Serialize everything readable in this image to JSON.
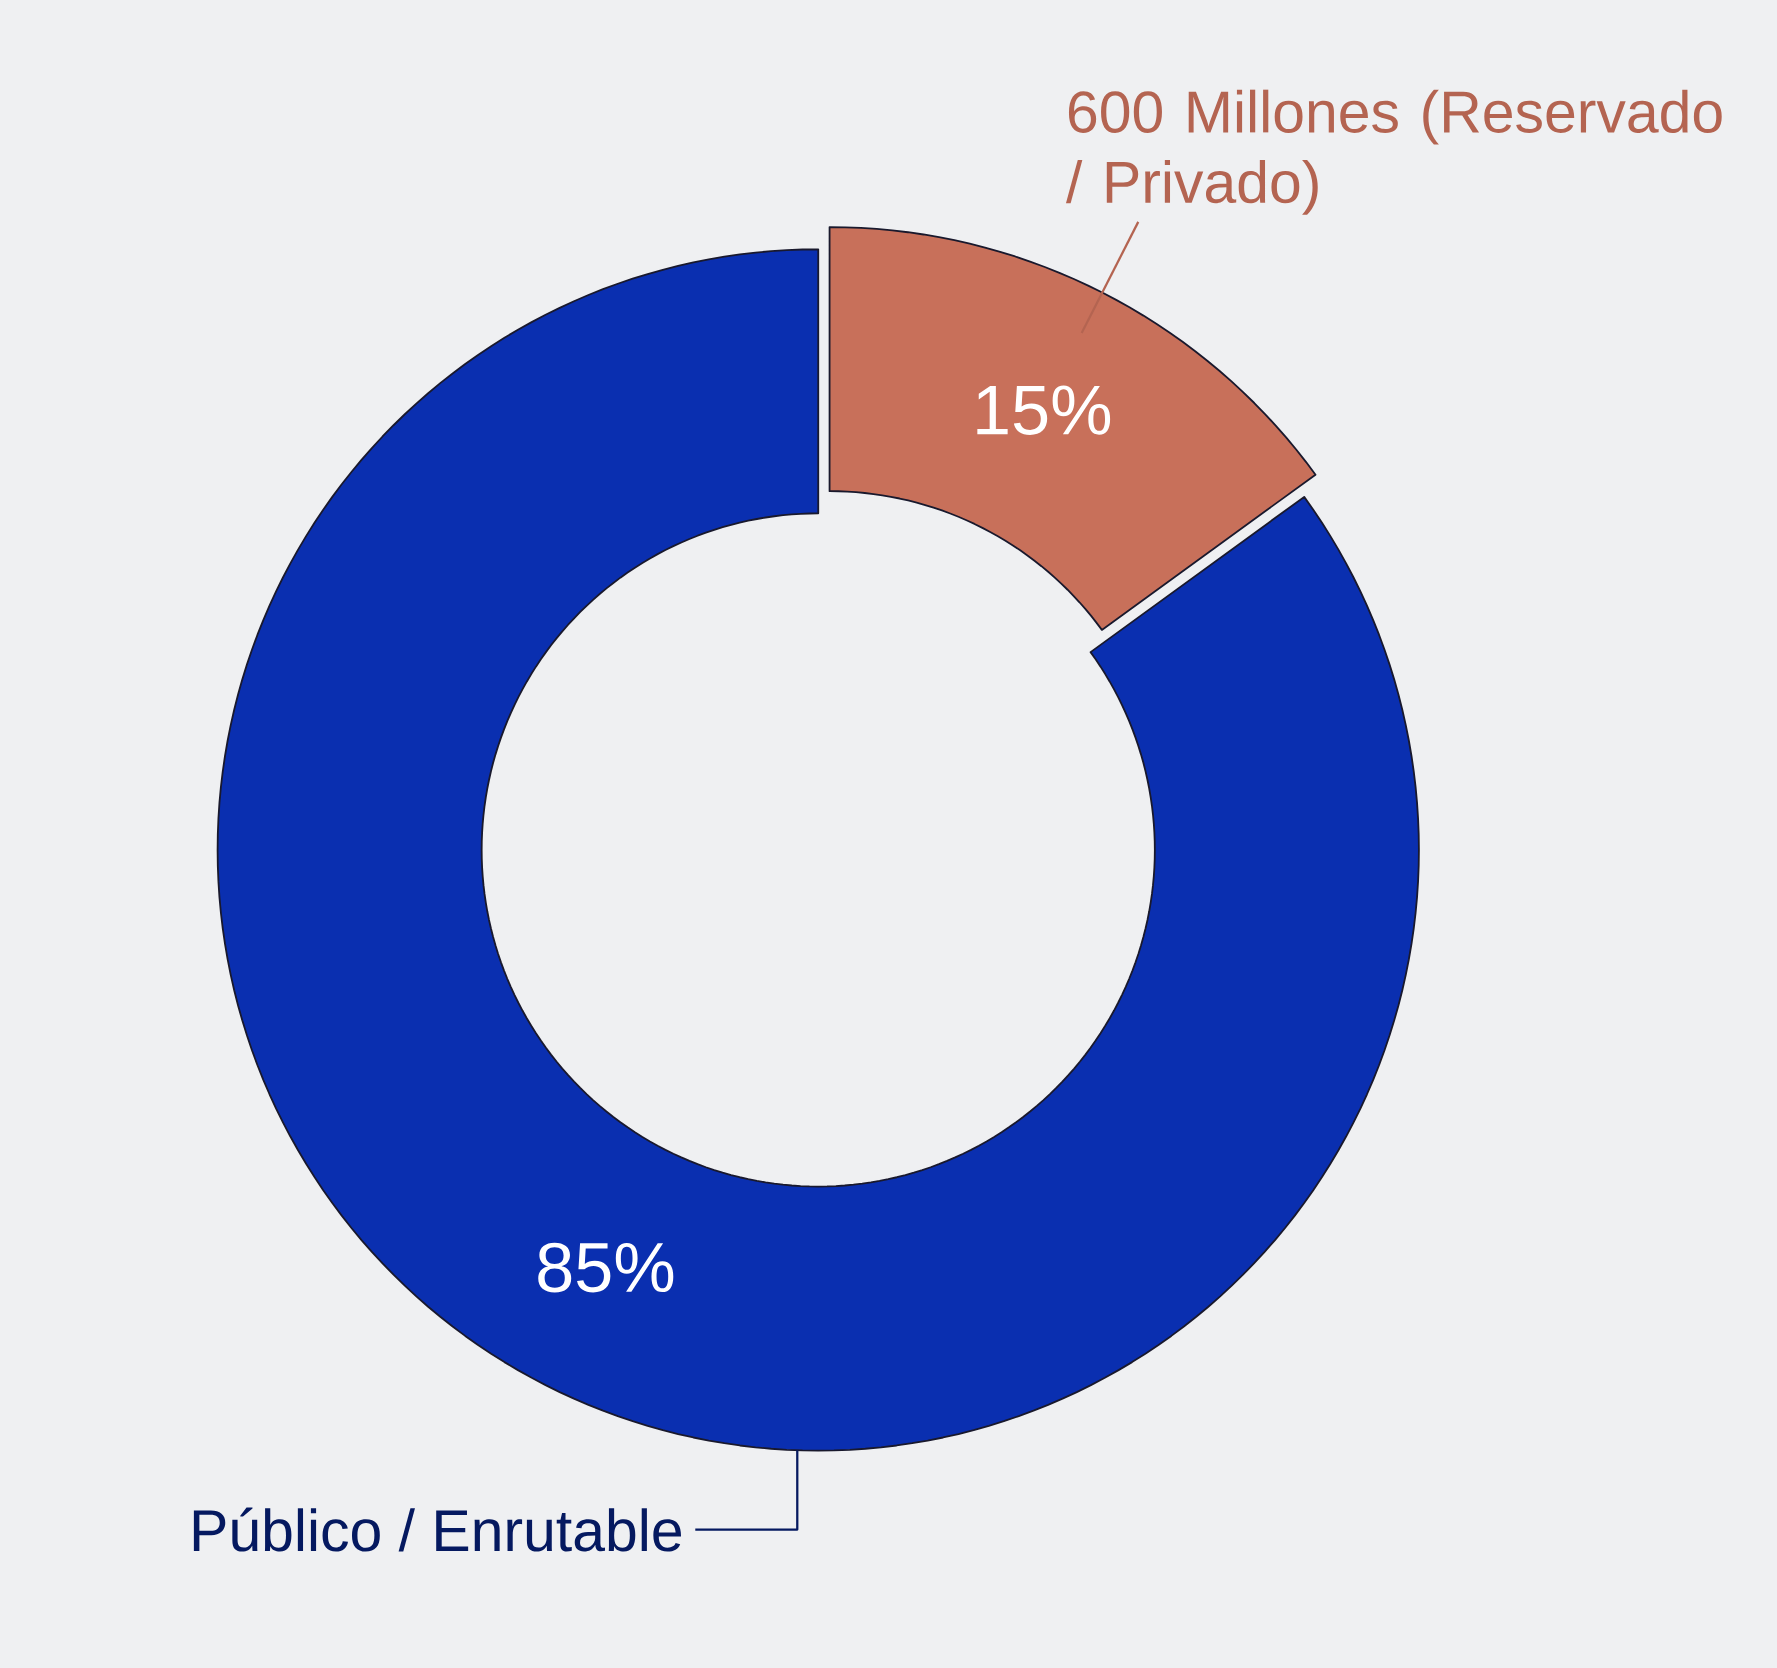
{
  "chart_data": {
    "type": "donut",
    "categories": [
      "600 Millones (Reservado / Privado)",
      "Público / Enrutable"
    ],
    "values": [
      15,
      85
    ],
    "colors": [
      "#c8705a",
      "#0a2fb0"
    ],
    "value_labels": [
      "15%",
      "85%"
    ]
  }
}
